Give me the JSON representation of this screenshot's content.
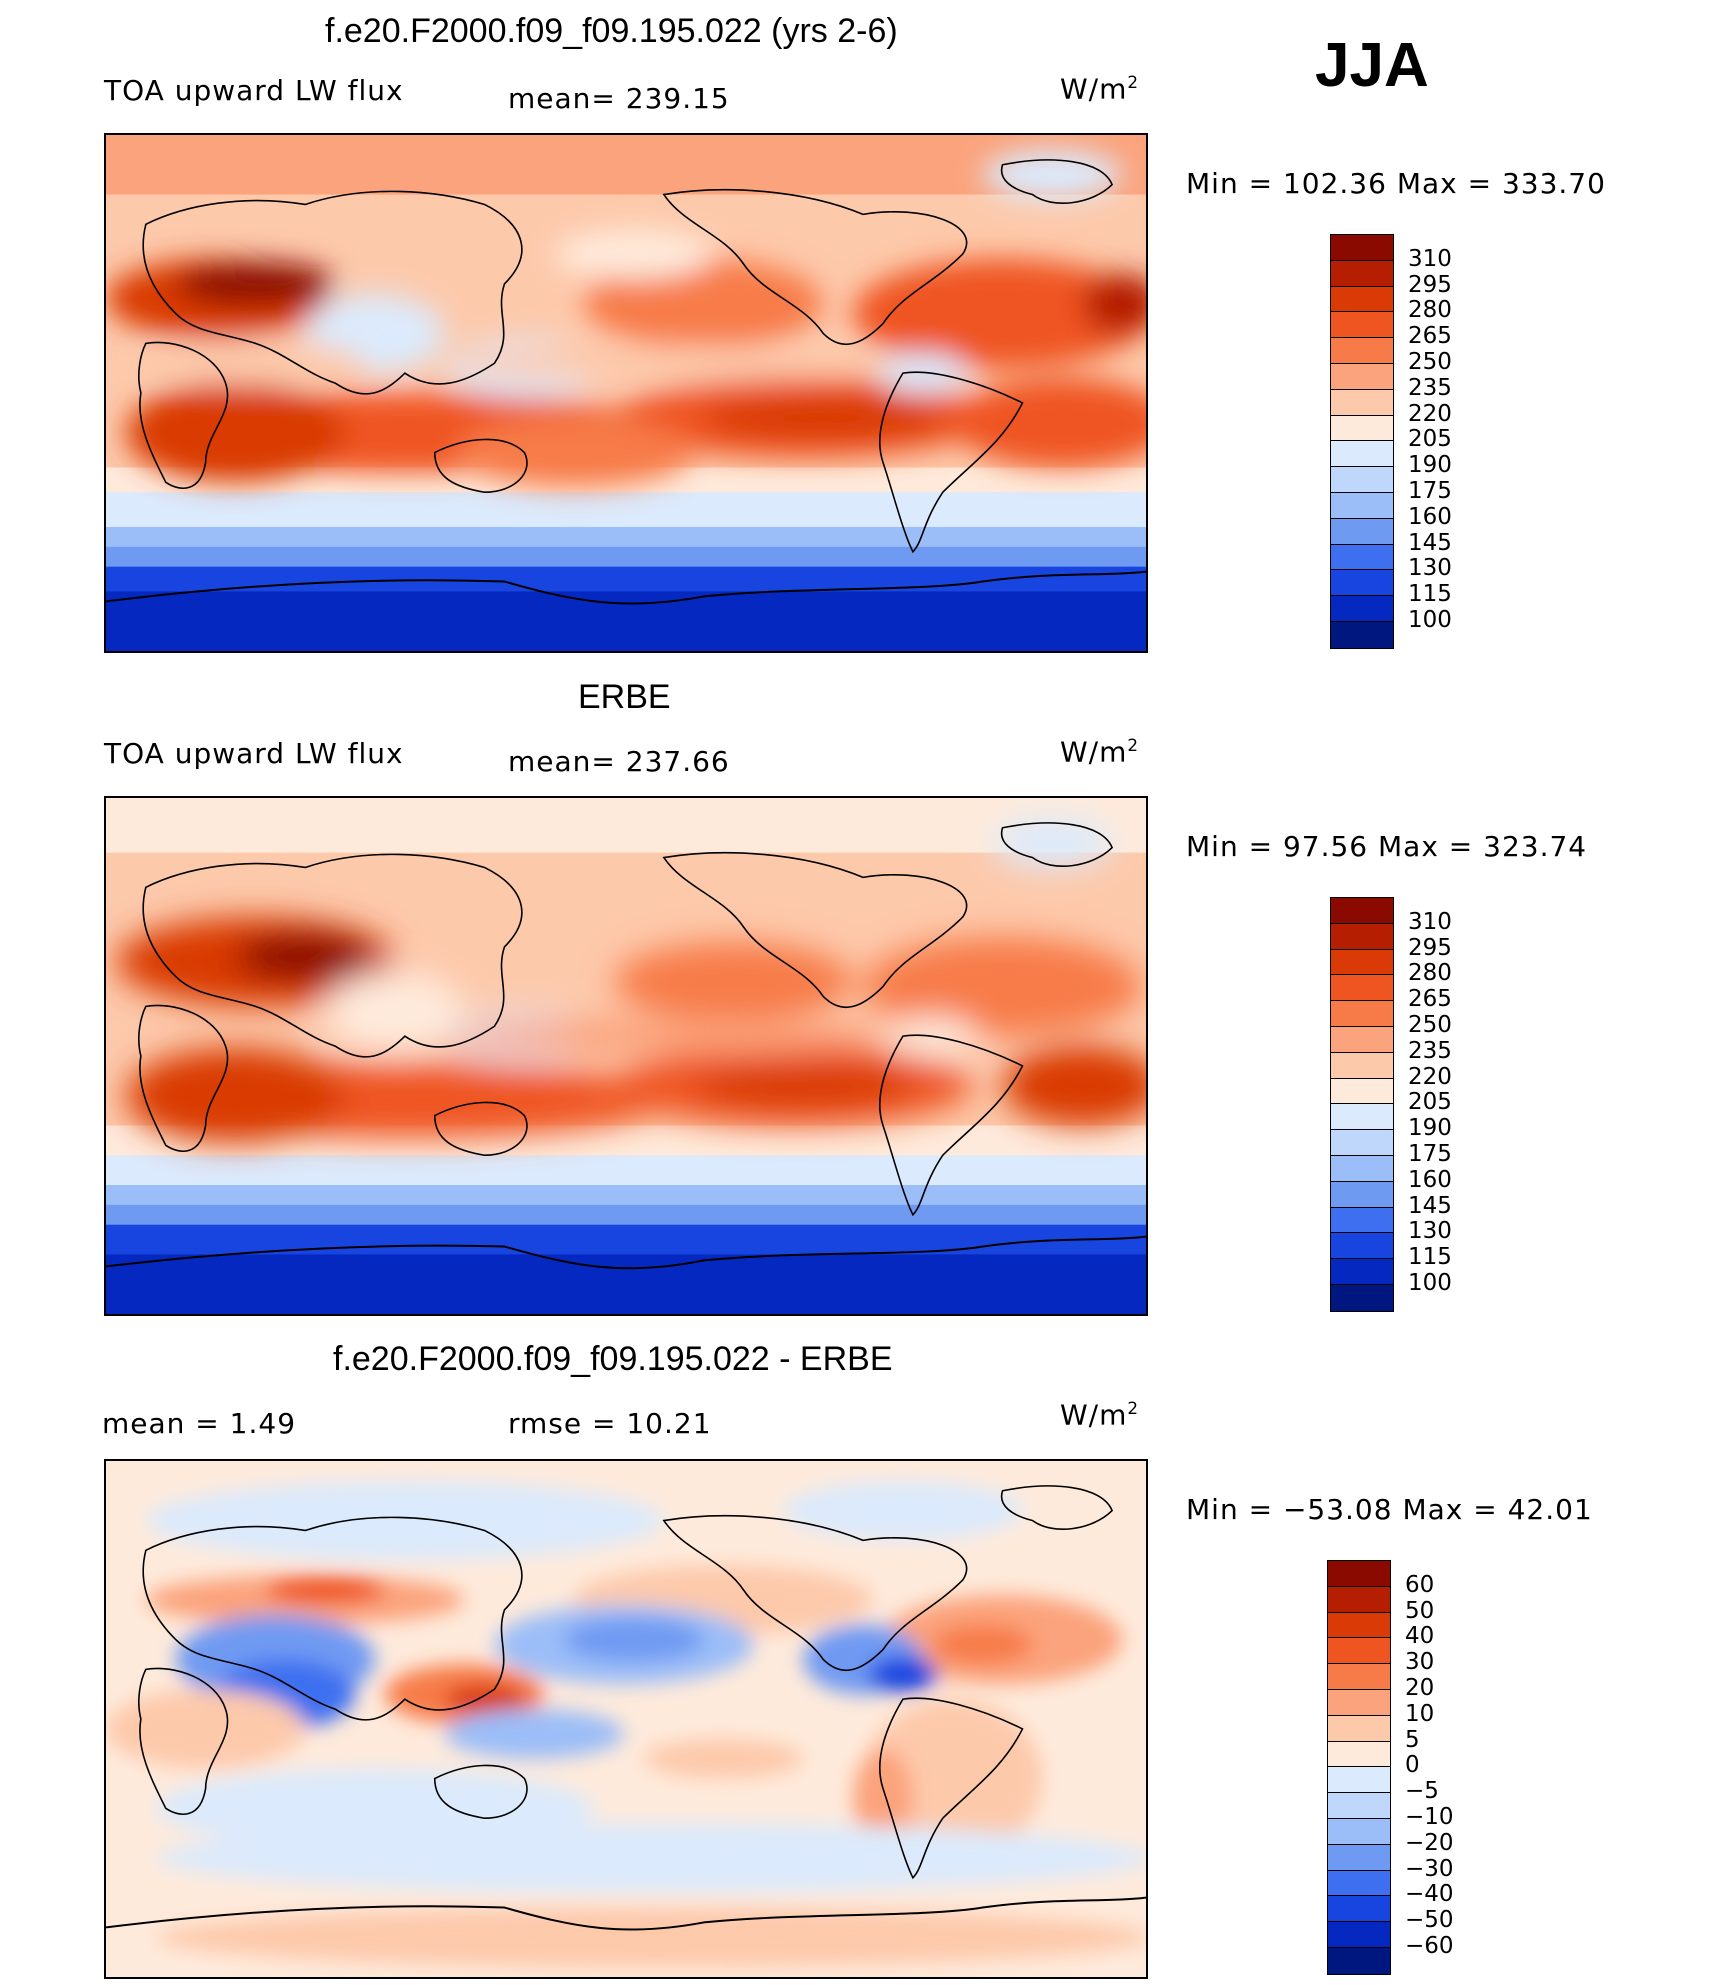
{
  "season": "JJA",
  "panels": [
    {
      "title": "f.e20.F2000.f09_f09.195.022 (yrs 2-6)",
      "left_label": "TOA upward LW flux",
      "mid_label": "mean= 239.15",
      "units": "W/m",
      "units_sup": "2",
      "minmax": "Min = 102.36 Max = 333.70"
    },
    {
      "title": "ERBE",
      "left_label": "TOA upward LW flux",
      "mid_label": "mean= 237.66",
      "units": "W/m",
      "units_sup": "2",
      "minmax": "Min =  97.56 Max = 323.74"
    },
    {
      "title": "f.e20.F2000.f09_f09.195.022 - ERBE",
      "left_label": "mean =    1.49",
      "mid_label": "rmse =   10.21",
      "units": "W/m",
      "units_sup": "2",
      "minmax": "Min = −53.08 Max =   42.01"
    }
  ],
  "colorbar_abs": {
    "labels": [
      "310",
      "295",
      "280",
      "265",
      "250",
      "235",
      "220",
      "205",
      "190",
      "175",
      "160",
      "145",
      "130",
      "115",
      "100"
    ],
    "colors": [
      "#8b0a00",
      "#b51e00",
      "#d93a06",
      "#ef5520",
      "#f77b48",
      "#fba37c",
      "#fdc9ab",
      "#feeadb",
      "#dbeafc",
      "#bed7fb",
      "#9bbdf8",
      "#6f9af2",
      "#3d6ff0",
      "#1845e0",
      "#0428c0",
      "#00177f"
    ]
  },
  "colorbar_diff": {
    "labels": [
      "60",
      "50",
      "40",
      "30",
      "20",
      "10",
      "5",
      "0",
      "−5",
      "−10",
      "−20",
      "−30",
      "−40",
      "−50",
      "−60"
    ],
    "colors": [
      "#8b0a00",
      "#b51e00",
      "#d93a06",
      "#ef5520",
      "#f77b48",
      "#fba37c",
      "#fdc9ab",
      "#feeadb",
      "#dbeafc",
      "#bed7fb",
      "#9bbdf8",
      "#6f9af2",
      "#3d6ff0",
      "#1845e0",
      "#0428c0",
      "#00177f"
    ]
  }
}
